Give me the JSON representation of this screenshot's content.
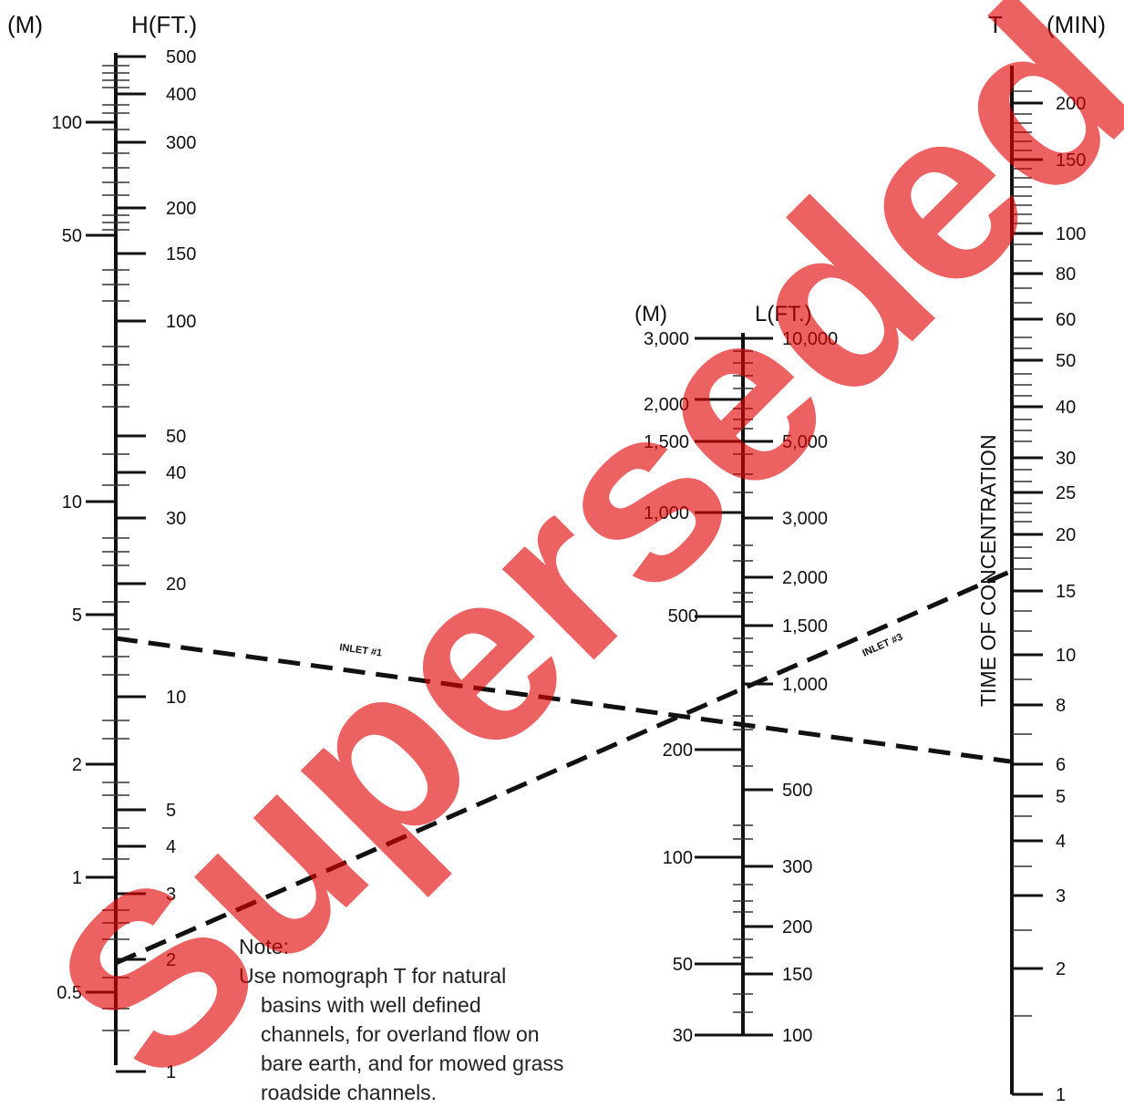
{
  "axes": {
    "h": {
      "unit_m": "(M)",
      "unit_ft": "H(FT.)",
      "ft_labels": [
        "500",
        "400",
        "300",
        "200",
        "150",
        "100",
        "50",
        "40",
        "30",
        "20",
        "10",
        "5",
        "4",
        "3",
        "2",
        "1"
      ],
      "m_labels": [
        "100",
        "50",
        "10",
        "5",
        "2",
        "1",
        "0.5"
      ]
    },
    "l": {
      "unit_m": "(M)",
      "unit_ft": "L(FT.)",
      "ft_labels": [
        "10,000",
        "5,000",
        "3,000",
        "2,000",
        "1,500",
        "1,000",
        "500",
        "300",
        "200",
        "150",
        "100"
      ],
      "m_labels": [
        "3,000",
        "2,000",
        "1,500",
        "1,000",
        "500",
        "200",
        "100",
        "50",
        "30"
      ]
    },
    "t": {
      "unit_t": "T",
      "unit_min": "(MIN)",
      "title": "TIME OF CONCENTRATION",
      "labels": [
        "200",
        "150",
        "100",
        "80",
        "60",
        "50",
        "40",
        "30",
        "25",
        "20",
        "15",
        "10",
        "8",
        "6",
        "5",
        "4",
        "3",
        "2",
        "1"
      ]
    }
  },
  "lines": {
    "inlet1": "INLET #1",
    "inlet3": "INLET #3"
  },
  "note": {
    "title": "Note:",
    "line1": "Use nomograph T  for natural",
    "line2": "basins with well defined",
    "line3": "channels, for overland flow on",
    "line4": "bare earth, and for mowed grass",
    "line5": "roadside channels."
  },
  "watermark": "Superseded",
  "colors": {
    "ink": "#111111",
    "watermark": "#e00000",
    "background": "#ffffff"
  }
}
